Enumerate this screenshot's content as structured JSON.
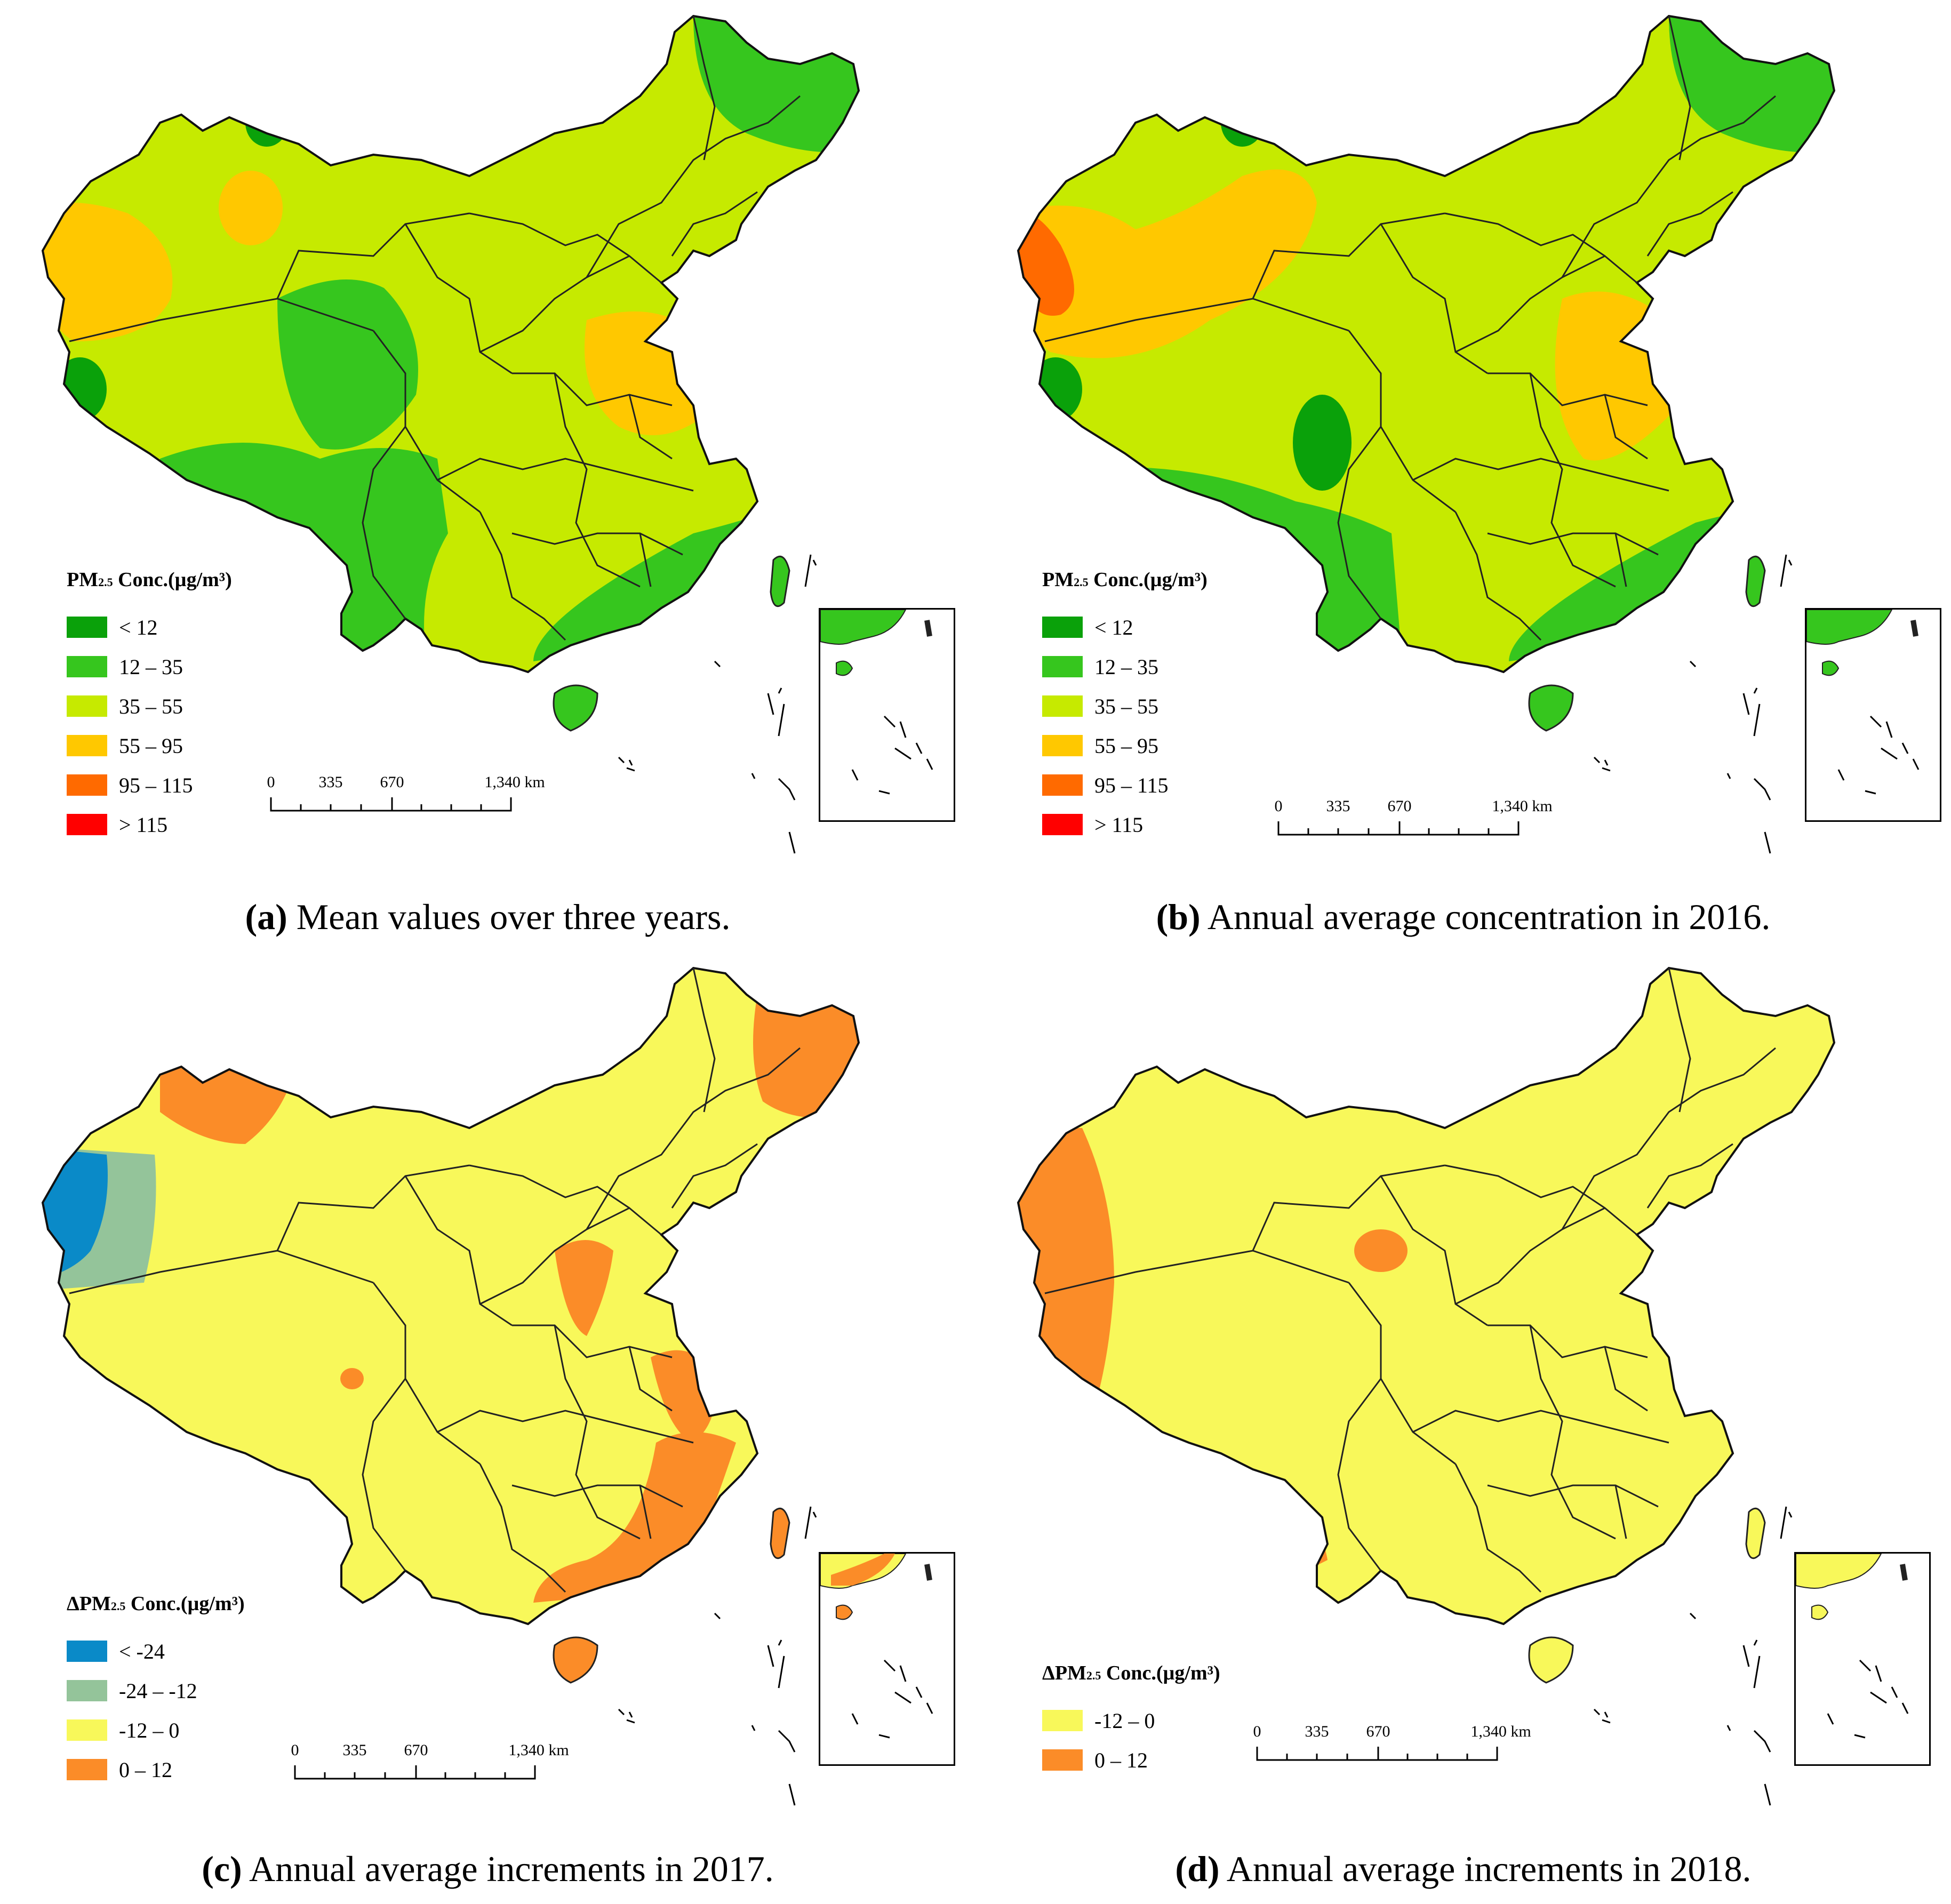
{
  "units": "µg/m³",
  "scale": {
    "ticks": [
      "0",
      "335",
      "670",
      "1,340 km"
    ]
  },
  "panels": [
    {
      "id": "a",
      "caption_label": "(a)",
      "caption_text": " Mean values over three years.",
      "legend_title": {
        "prefix": "PM",
        "sub": "2.5",
        "suffix": " Conc.(µg/m³)"
      },
      "legend": [
        {
          "label": "< 12",
          "color": "#0aa10a"
        },
        {
          "label": "12 – 35",
          "color": "#36c61e"
        },
        {
          "label": "35 – 55",
          "color": "#c6ea00"
        },
        {
          "label": "55 – 95",
          "color": "#ffc800"
        },
        {
          "label": "95 – 115",
          "color": "#ff6a00"
        },
        {
          "label": "> 115",
          "color": "#ff0000"
        }
      ]
    },
    {
      "id": "b",
      "caption_label": "(b)",
      "caption_text": " Annual average concentration in 2016.",
      "legend_title": {
        "prefix": "PM",
        "sub": "2.5",
        "suffix": " Conc.(µg/m³)"
      },
      "legend": [
        {
          "label": "< 12",
          "color": "#0aa10a"
        },
        {
          "label": "12 – 35",
          "color": "#36c61e"
        },
        {
          "label": "35 – 55",
          "color": "#c6ea00"
        },
        {
          "label": "55 – 95",
          "color": "#ffc800"
        },
        {
          "label": "95 – 115",
          "color": "#ff6a00"
        },
        {
          "label": "> 115",
          "color": "#ff0000"
        }
      ]
    },
    {
      "id": "c",
      "caption_label": "(c)",
      "caption_text": " Annual average increments in 2017.",
      "legend_title": {
        "prefix": "ΔPM",
        "sub": "2.5",
        "suffix": " Conc.(µg/m³)"
      },
      "legend": [
        {
          "label": "< -24",
          "color": "#0a8ac8"
        },
        {
          "label": "-24 – -12",
          "color": "#94c49a"
        },
        {
          "label": "-12 – 0",
          "color": "#f8f85a"
        },
        {
          "label": "0 – 12",
          "color": "#fb8c28"
        }
      ]
    },
    {
      "id": "d",
      "caption_label": "(d)",
      "caption_text": " Annual average increments in 2018.",
      "legend_title": {
        "prefix": "ΔPM",
        "sub": "2.5",
        "suffix": " Conc.(µg/m³)"
      },
      "legend": [
        {
          "label": "-12 – 0",
          "color": "#f8f85a"
        },
        {
          "label": "0 – 12",
          "color": "#fb8c28"
        }
      ]
    }
  ]
}
